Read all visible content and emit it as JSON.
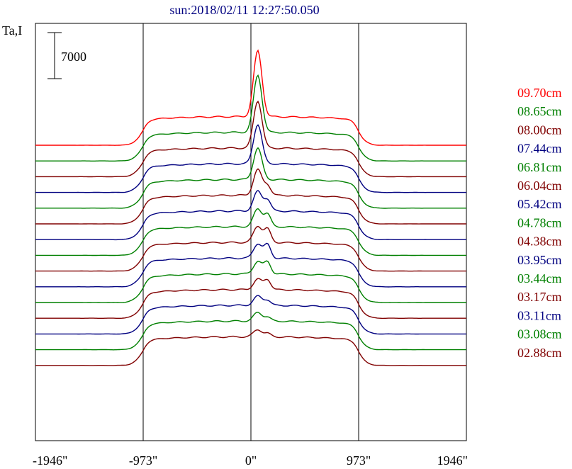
{
  "chart_data": {
    "type": "line",
    "title": "sun:2018/02/11 12:27:50.050",
    "ylabel": "Ta,I",
    "scale_bar": {
      "label": "7000",
      "value": 7000
    },
    "x_ticks": [
      "-1946\"",
      "-973\"",
      "0\"",
      "973\"",
      "1946\""
    ],
    "x_tick_values": [
      -1946,
      -973,
      0,
      973,
      1946
    ],
    "xlim": [
      -1946,
      1946
    ],
    "vertical_markers": [
      -973,
      0,
      973
    ],
    "series": [
      {
        "name": "09.70cm",
        "color": "#ff0000",
        "base_brightness": 4350,
        "peak": 10000,
        "bump": 0
      },
      {
        "name": "08.65cm",
        "color": "#008000",
        "base_brightness": 4350,
        "peak": 8700,
        "bump": 0
      },
      {
        "name": "08.00cm",
        "color": "#800000",
        "base_brightness": 4350,
        "peak": 7200,
        "bump": 0
      },
      {
        "name": "07.44cm",
        "color": "#000080",
        "base_brightness": 4350,
        "peak": 6000,
        "bump": 0
      },
      {
        "name": "06.81cm",
        "color": "#008000",
        "base_brightness": 4350,
        "peak": 4800,
        "bump": 0
      },
      {
        "name": "06.04cm",
        "color": "#800000",
        "base_brightness": 4350,
        "peak": 3900,
        "bump": 1500
      },
      {
        "name": "05.42cm",
        "color": "#000080",
        "base_brightness": 4350,
        "peak": 3000,
        "bump": 1700
      },
      {
        "name": "04.78cm",
        "color": "#008000",
        "base_brightness": 4350,
        "peak": 2700,
        "bump": 1900
      },
      {
        "name": "04.38cm",
        "color": "#800000",
        "base_brightness": 4350,
        "peak": 2500,
        "bump": 2000
      },
      {
        "name": "03.95cm",
        "color": "#000080",
        "base_brightness": 4350,
        "peak": 2200,
        "bump": 2000
      },
      {
        "name": "03.44cm",
        "color": "#008000",
        "base_brightness": 4350,
        "peak": 1900,
        "bump": 1800
      },
      {
        "name": "03.17cm",
        "color": "#800000",
        "base_brightness": 4350,
        "peak": 1600,
        "bump": 1500
      },
      {
        "name": "03.11cm",
        "color": "#000080",
        "base_brightness": 4350,
        "peak": 1400,
        "bump": 800
      },
      {
        "name": "03.08cm",
        "color": "#008000",
        "base_brightness": 4350,
        "peak": 1300,
        "bump": 600
      },
      {
        "name": "02.88cm",
        "color": "#800000",
        "base_brightness": 4350,
        "peak": 1100,
        "bump": 500
      }
    ]
  }
}
